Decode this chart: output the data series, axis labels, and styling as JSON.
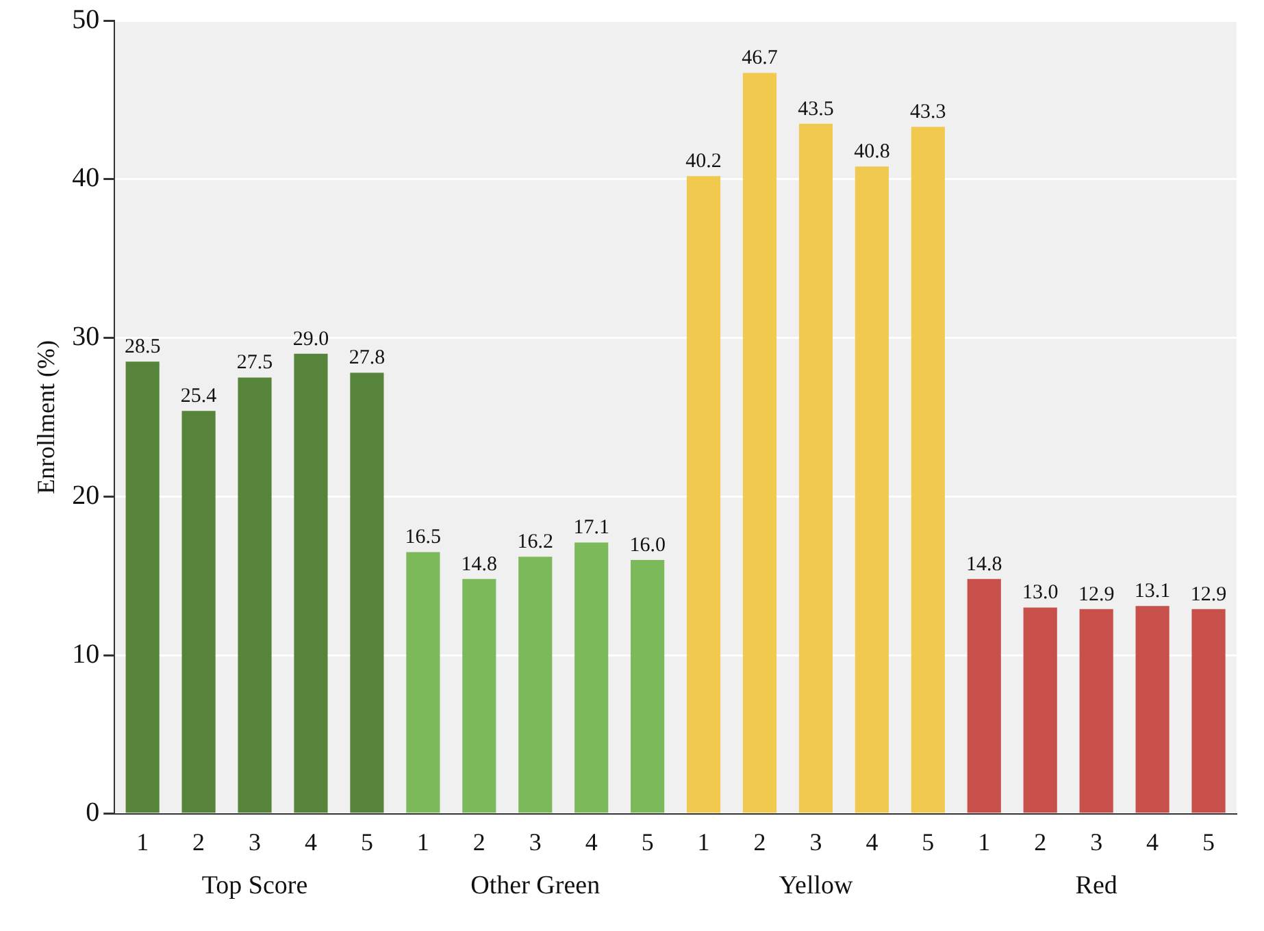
{
  "chart_data": {
    "type": "bar",
    "ylabel": "Enrollment (%)",
    "categories": [
      "1",
      "2",
      "3",
      "4",
      "5",
      "1",
      "2",
      "3",
      "4",
      "5",
      "1",
      "2",
      "3",
      "4",
      "5",
      "1",
      "2",
      "3",
      "4",
      "5"
    ],
    "series": [
      {
        "name": "Top Score",
        "color": "#56843a",
        "values": [
          28.5,
          25.4,
          27.5,
          29.0,
          27.8,
          null,
          null,
          null,
          null,
          null,
          null,
          null,
          null,
          null,
          null,
          null,
          null,
          null,
          null,
          null
        ],
        "value_labels": [
          "28.5",
          "25.4",
          "27.5",
          "29.0",
          "27.8",
          null,
          null,
          null,
          null,
          null,
          null,
          null,
          null,
          null,
          null,
          null,
          null,
          null,
          null,
          null
        ]
      },
      {
        "name": "Other Green",
        "color": "#7cb95b",
        "values": [
          null,
          null,
          null,
          null,
          null,
          16.5,
          14.8,
          16.2,
          17.1,
          16.0,
          null,
          null,
          null,
          null,
          null,
          null,
          null,
          null,
          null,
          null
        ],
        "value_labels": [
          null,
          null,
          null,
          null,
          null,
          "16.5",
          "14.8",
          "16.2",
          "17.1",
          "16.0",
          null,
          null,
          null,
          null,
          null,
          null,
          null,
          null,
          null,
          null
        ]
      },
      {
        "name": "Yellow",
        "color": "#f1c94f",
        "values": [
          null,
          null,
          null,
          null,
          null,
          null,
          null,
          null,
          null,
          null,
          40.2,
          46.7,
          43.5,
          40.8,
          43.3,
          null,
          null,
          null,
          null,
          null
        ],
        "value_labels": [
          null,
          null,
          null,
          null,
          null,
          null,
          null,
          null,
          null,
          null,
          "40.2",
          "46.7",
          "43.5",
          "40.8",
          "43.3",
          null,
          null,
          null,
          null,
          null
        ]
      },
      {
        "name": "Red",
        "color": "#c8504b",
        "values": [
          null,
          null,
          null,
          null,
          null,
          null,
          null,
          null,
          null,
          null,
          null,
          null,
          null,
          null,
          null,
          14.8,
          13.0,
          12.9,
          13.1,
          12.9
        ],
        "value_labels": [
          null,
          null,
          null,
          null,
          null,
          null,
          null,
          null,
          null,
          null,
          null,
          null,
          null,
          null,
          null,
          "14.8",
          "13.0",
          "12.9",
          "13.1",
          "12.9"
        ]
      }
    ],
    "ylim": [
      0,
      50
    ],
    "yticks": [
      0,
      10,
      20,
      30,
      40,
      50
    ],
    "grid": "y",
    "legend": false
  }
}
